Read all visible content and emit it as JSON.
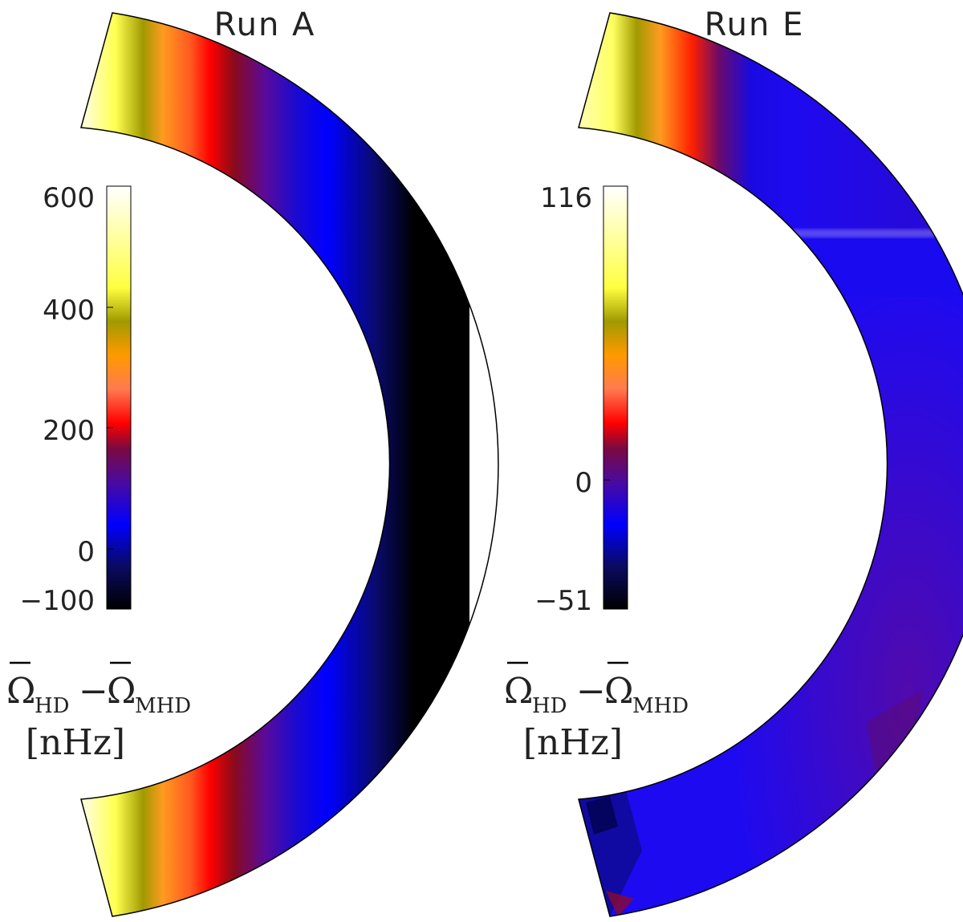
{
  "panels": [
    {
      "title": "Run A",
      "colorbar": {
        "max_label": "600",
        "ticks": [
          "600",
          "400",
          "200",
          "0",
          "−100"
        ]
      },
      "quantity": {
        "symbol1": "Ω",
        "sub1": "HD",
        "minus": "−",
        "symbol2": "Ω",
        "sub2": "MHD",
        "units": "[nHz]"
      }
    },
    {
      "title": "Run E",
      "colorbar": {
        "ticks": [
          "116",
          "0",
          "−51"
        ]
      },
      "quantity": {
        "symbol1": "Ω",
        "sub1": "HD",
        "minus": "−",
        "symbol2": "Ω",
        "sub2": "MHD",
        "units": "[nHz]"
      }
    }
  ],
  "colormap": [
    "#000000",
    "#0a0a55",
    "#0000ff",
    "#5a0a9a",
    "#8b0a2a",
    "#ff0000",
    "#ff6a3a",
    "#ffa53d",
    "#ff9900",
    "#a8a000",
    "#ffff4d",
    "#ffffff"
  ]
}
